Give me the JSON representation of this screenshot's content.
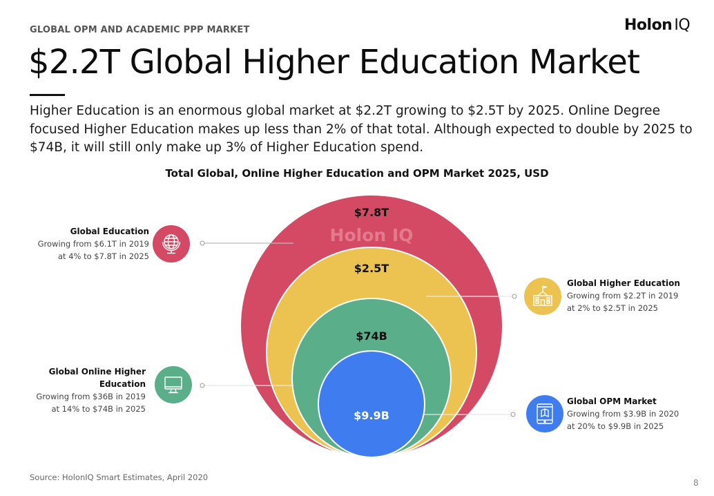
{
  "header": {
    "kicker": "GLOBAL OPM AND ACADEMIC PPP MARKET",
    "logo_main": "Holon",
    "logo_suffix": "IQ",
    "title": "$2.2T Global Higher Education Market",
    "subtitle": "Higher Education is an enormous global market at $2.2T growing to $2.5T by 2025. Online Degree focused Higher Education makes up less than 2% of that total. Although expected to double by 2025 to $74B, it will still only make up 3% of Higher Education spend."
  },
  "chart_data": {
    "type": "nested-bubble",
    "title": "Total Global, Online Higher Education and OPM Market 2025, USD",
    "watermark": "Holon IQ",
    "series": [
      {
        "name": "Global Education",
        "value_label": "$7.8T",
        "value_usd_billions": 7800,
        "description": "Growing from $6.1T in 2019 at 4% to $7.8T in 2025",
        "desc_line1": "Growing from $6.1T in 2019",
        "desc_line2": "at 4% to $7.8T in 2025",
        "color": "#d44a64",
        "icon": "globe-icon"
      },
      {
        "name": "Global Higher Education",
        "value_label": "$2.5T",
        "value_usd_billions": 2500,
        "description": "Growing from $2.2T in 2019 at 2% to $2.5T in 2025",
        "desc_line1": "Growing from $2.2T in 2019",
        "desc_line2": "at 2% to $2.5T in 2025",
        "color": "#ecc350",
        "icon": "school-building-icon"
      },
      {
        "name": "Global Online Higher Education",
        "value_label": "$74B",
        "value_usd_billions": 74,
        "description": "Growing from $36B in 2019 at 14% to $74B in 2025",
        "desc_line1": "Growing from $36B in 2019",
        "desc_line2": "at 14% to $74B in 2025",
        "color": "#5aae8a",
        "icon": "monitor-icon"
      },
      {
        "name": "Global OPM Market",
        "value_label": "$9.9B",
        "value_usd_billions": 9.9,
        "description": "Growing from $3.9B in 2020 at 20% to $9.9B in 2025",
        "desc_line1": "Growing from $3.9B in 2020",
        "desc_line2": "at 20% to $9.9B in 2025",
        "color": "#3e7cf0",
        "icon": "tablet-icon"
      }
    ]
  },
  "footer": {
    "source": "Source: HolonIQ Smart Estimates, April 2020",
    "page_number": "8"
  }
}
